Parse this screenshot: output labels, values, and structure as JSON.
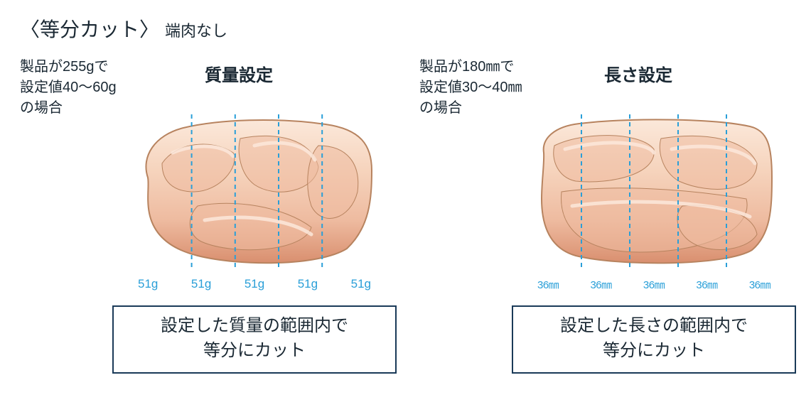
{
  "colors": {
    "text": "#1a2833",
    "accent": "#2a9fd8",
    "border": "#1a3a58",
    "meat_light": "#f6d4bd",
    "meat_mid": "#eebba0",
    "meat_dark": "#d98f6f",
    "meat_highlight": "#fbe8da",
    "meat_outline": "#b7835f"
  },
  "title": {
    "main": "〈等分カット〉",
    "sub": "端肉なし"
  },
  "left": {
    "condition": "製品が255gで\n設定値40〜60g\nの場合",
    "mode": "質量設定",
    "type": "mass",
    "cuts": {
      "count": 4,
      "positions_pct": [
        24,
        42,
        60,
        78
      ]
    },
    "values": [
      "51g",
      "51g",
      "51g",
      "51g",
      "51g"
    ],
    "caption": "設定した質量の範囲内で\n等分にカット"
  },
  "right": {
    "condition": "製品が180㎜で\n設定値30〜40㎜\nの場合",
    "mode": "長さ設定",
    "type": "length",
    "cuts": {
      "count": 4,
      "positions_pct": [
        20,
        40,
        60,
        80
      ]
    },
    "values": [
      "36㎜",
      "36㎜",
      "36㎜",
      "36㎜",
      "36㎜"
    ],
    "caption": "設定した長さの範囲内で\n等分にカット"
  },
  "cut_line_style": {
    "stroke_width": 2,
    "dash": "6,5"
  }
}
